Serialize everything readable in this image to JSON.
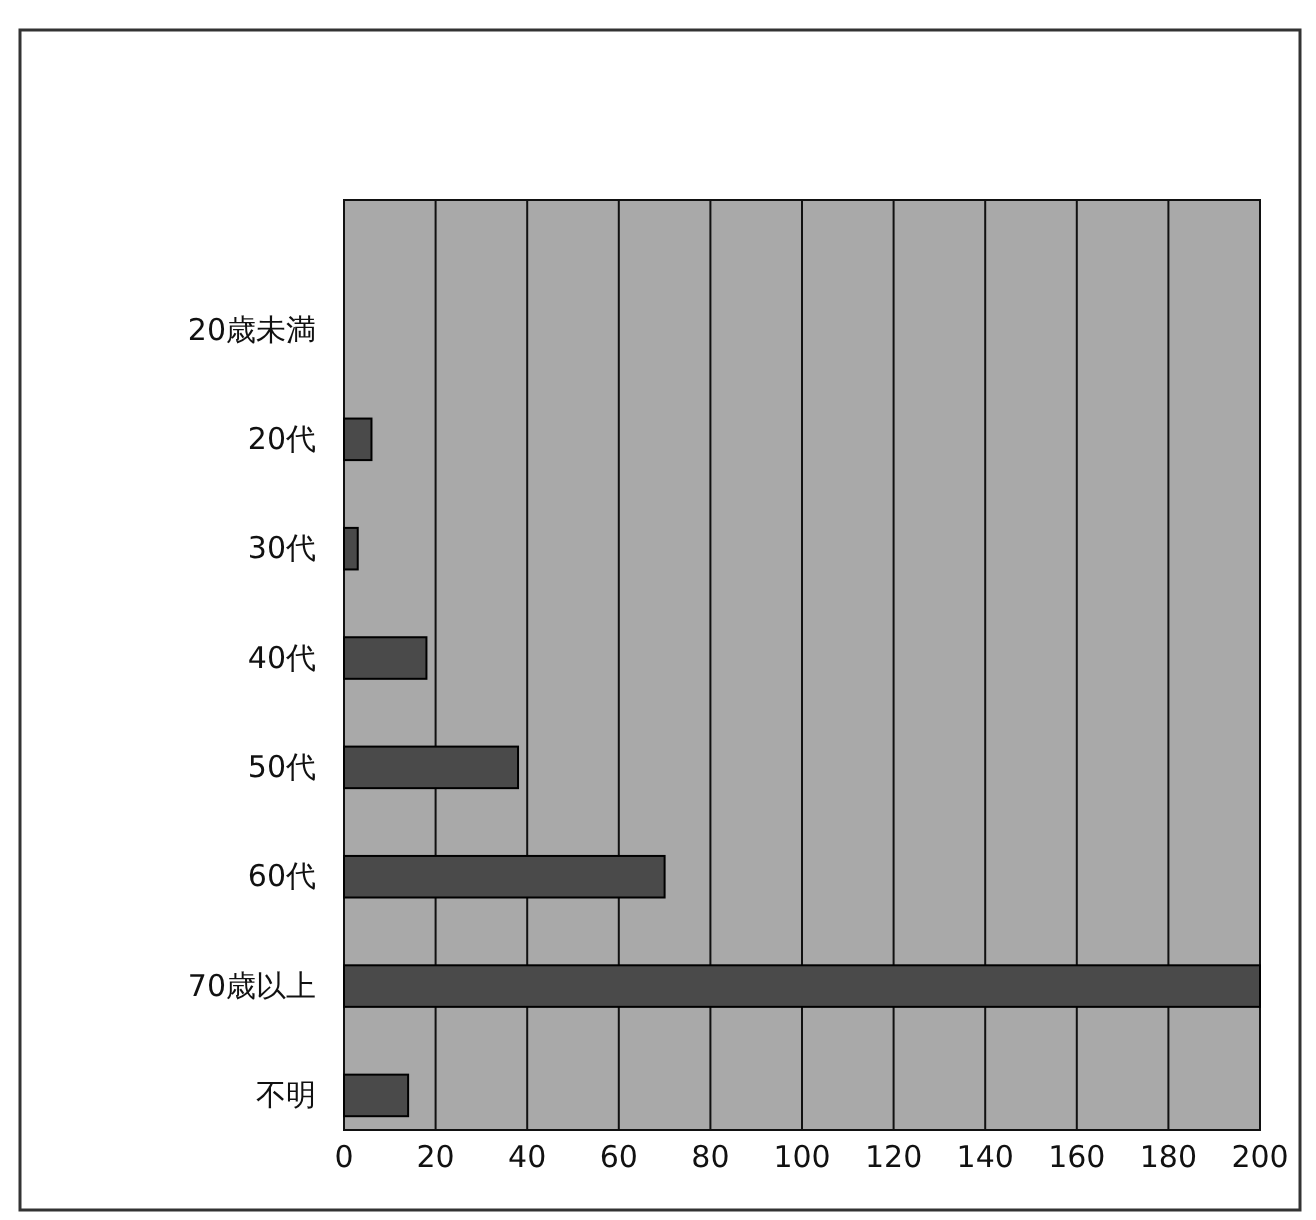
{
  "chart_data": {
    "type": "bar",
    "orientation": "horizontal",
    "categories": [
      "20歳未満",
      "20代",
      "30代",
      "40代",
      "50代",
      "60代",
      "70歳以上",
      "不明"
    ],
    "values": [
      0,
      6,
      3,
      18,
      38,
      70,
      200,
      14
    ],
    "color": "#4a4a4a",
    "xlim": [
      0,
      200
    ],
    "xticks": [
      0,
      20,
      40,
      60,
      80,
      100,
      120,
      140,
      160,
      180,
      200
    ],
    "grid": "x"
  }
}
